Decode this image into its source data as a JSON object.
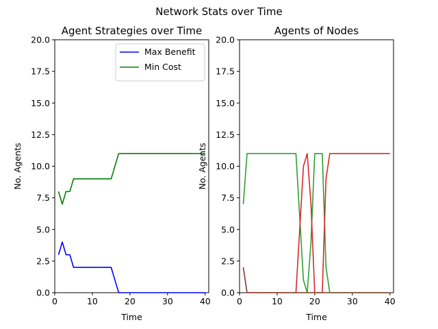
{
  "suptitle": "Network Stats over Time",
  "chart_data": [
    {
      "type": "line",
      "title": "Agent Strategies over Time",
      "xlabel": "Time",
      "ylabel": "No. Agents",
      "xlim": [
        0,
        40.95
      ],
      "ylim": [
        0,
        20
      ],
      "xticks": [
        0,
        10,
        20,
        30,
        40
      ],
      "yticks": [
        0,
        2.5,
        5,
        7.5,
        10,
        12.5,
        15,
        17.5,
        20
      ],
      "xtick_labels": [
        "0",
        "10",
        "20",
        "30",
        "40"
      ],
      "ytick_labels": [
        "0.0",
        "2.5",
        "5.0",
        "7.5",
        "10.0",
        "12.5",
        "15.0",
        "17.5",
        "20.0"
      ],
      "legend": "top-right",
      "grid": false,
      "series": [
        {
          "name": "Max Benefit",
          "color": "#0000ff",
          "x": [
            1,
            2,
            3,
            4,
            5,
            6,
            7,
            8,
            9,
            10,
            11,
            12,
            13,
            14,
            15,
            16,
            17,
            18,
            19,
            20,
            21,
            22,
            23,
            24,
            25,
            26,
            27,
            28,
            29,
            30,
            31,
            32,
            33,
            34,
            35,
            36,
            37,
            38,
            39,
            40
          ],
          "y": [
            3,
            4,
            3,
            3,
            2,
            2,
            2,
            2,
            2,
            2,
            2,
            2,
            2,
            2,
            2,
            1,
            0,
            0,
            0,
            0,
            0,
            0,
            0,
            0,
            0,
            0,
            0,
            0,
            0,
            0,
            0,
            0,
            0,
            0,
            0,
            0,
            0,
            0,
            0,
            0
          ]
        },
        {
          "name": "Min Cost",
          "color": "#008000",
          "x": [
            1,
            2,
            3,
            4,
            5,
            6,
            7,
            8,
            9,
            10,
            11,
            12,
            13,
            14,
            15,
            16,
            17,
            18,
            19,
            20,
            21,
            22,
            23,
            24,
            25,
            26,
            27,
            28,
            29,
            30,
            31,
            32,
            33,
            34,
            35,
            36,
            37,
            38,
            39,
            40
          ],
          "y": [
            8,
            7,
            8,
            8,
            9,
            9,
            9,
            9,
            9,
            9,
            9,
            9,
            9,
            9,
            9,
            10,
            11,
            11,
            11,
            11,
            11,
            11,
            11,
            11,
            11,
            11,
            11,
            11,
            11,
            11,
            11,
            11,
            11,
            11,
            11,
            11,
            11,
            11,
            11,
            11
          ]
        }
      ]
    },
    {
      "type": "line",
      "title": "Agents of Nodes",
      "xlabel": "Time",
      "ylabel": "No. Agents",
      "xlim": [
        0,
        40.95
      ],
      "ylim": [
        0,
        20
      ],
      "xticks": [
        0,
        10,
        20,
        30,
        40
      ],
      "yticks": [
        0,
        2.5,
        5,
        7.5,
        10,
        12.5,
        15,
        17.5,
        20
      ],
      "xtick_labels": [
        "0",
        "10",
        "20",
        "30",
        "40"
      ],
      "ytick_labels": [
        "0.0",
        "2.5",
        "5.0",
        "7.5",
        "10.0",
        "12.5",
        "15.0",
        "17.5",
        "20.0"
      ],
      "grid": false,
      "series": [
        {
          "color": "#1f77b4",
          "x": [
            1,
            2,
            40
          ],
          "y": [
            2,
            0,
            0
          ]
        },
        {
          "color": "#ff7f0e",
          "x": [
            1,
            2,
            40
          ],
          "y": [
            2,
            0,
            0
          ]
        },
        {
          "color": "#2ca02c",
          "x": [
            1,
            2,
            3,
            4,
            5,
            6,
            7,
            8,
            9,
            10,
            11,
            12,
            13,
            14,
            15,
            16,
            17,
            18,
            19,
            20,
            21,
            22,
            23,
            24,
            25,
            26,
            27,
            28,
            29,
            30,
            31,
            32,
            33,
            34,
            35,
            36,
            37,
            38,
            39,
            40
          ],
          "y": [
            7,
            11,
            11,
            11,
            11,
            11,
            11,
            11,
            11,
            11,
            11,
            11,
            11,
            11,
            11,
            6,
            1,
            0,
            4,
            11,
            11,
            11,
            2,
            0,
            0,
            0,
            0,
            0,
            0,
            0,
            0,
            0,
            0,
            0,
            0,
            0,
            0,
            0,
            0,
            0
          ]
        },
        {
          "color": "#d62728",
          "x": [
            1,
            2,
            3,
            4,
            5,
            6,
            7,
            8,
            9,
            10,
            11,
            12,
            13,
            14,
            15,
            16,
            17,
            18,
            19,
            20,
            21,
            22,
            23,
            24,
            25,
            26,
            27,
            28,
            29,
            30,
            31,
            32,
            33,
            34,
            35,
            36,
            37,
            38,
            39,
            40
          ],
          "y": [
            2,
            0,
            0,
            0,
            0,
            0,
            0,
            0,
            0,
            0,
            0,
            0,
            0,
            0,
            0,
            5,
            10,
            11,
            7,
            0,
            0,
            0,
            9,
            11,
            11,
            11,
            11,
            11,
            11,
            11,
            11,
            11,
            11,
            11,
            11,
            11,
            11,
            11,
            11,
            11
          ]
        },
        {
          "color": "#8c564b",
          "x": [
            1,
            2,
            40
          ],
          "y": [
            2,
            0,
            0
          ]
        }
      ]
    }
  ]
}
